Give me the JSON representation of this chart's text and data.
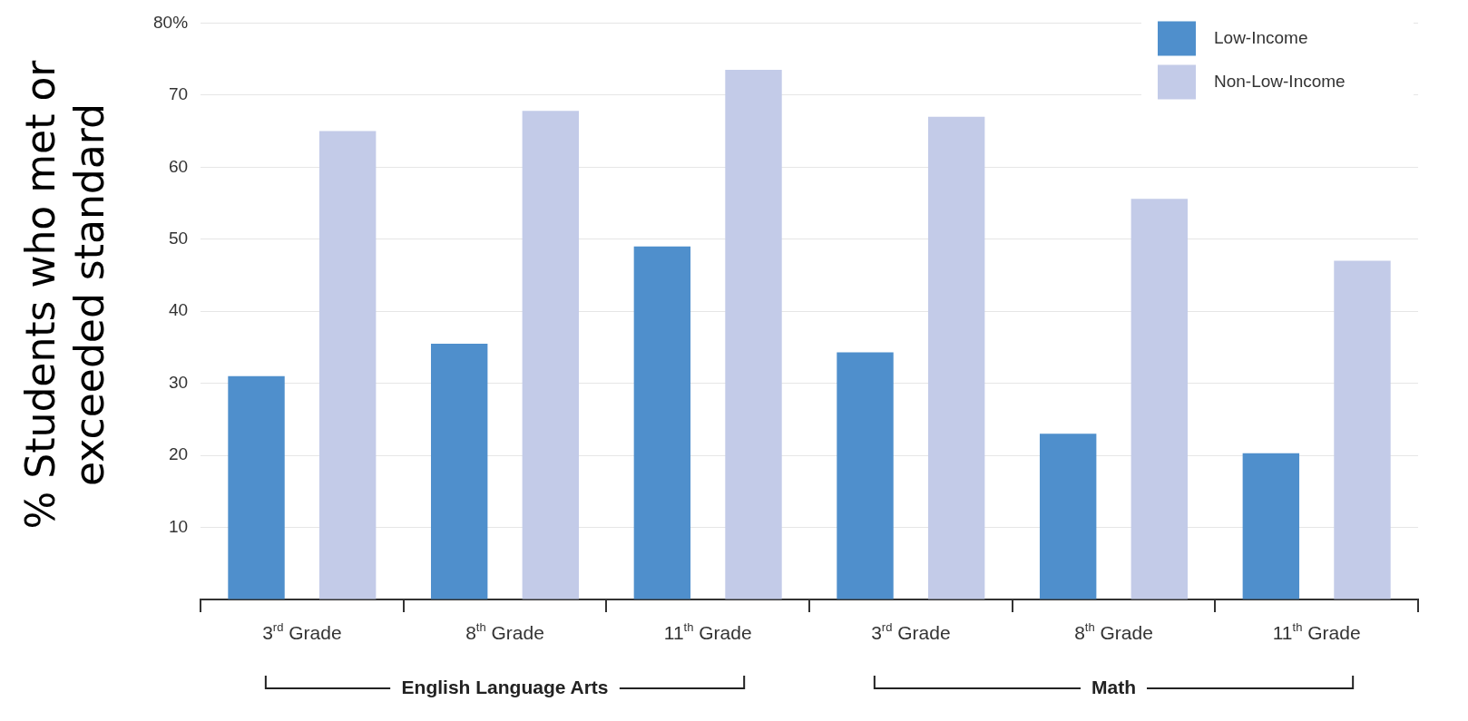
{
  "chart_data": {
    "type": "bar",
    "ylabel": "% Students who met or exceeded standard",
    "categories": [
      "3$^{rd}$ Grade",
      "8$^{th}$ Grade",
      "11$^{th}$ Grade",
      "3$^{rd}$ Grade",
      "8$^{th}$ Grade",
      "11$^{th}$ Grade"
    ],
    "series": [
      {
        "name": "Low-Income",
        "color": "#4f8fcc",
        "values": [
          31,
          35.5,
          49,
          34.3,
          23,
          20.3
        ]
      },
      {
        "name": "Non-Low-Income",
        "color": "#c3cbe8",
        "values": [
          65,
          67.8,
          73.5,
          67,
          55.6,
          47
        ]
      }
    ],
    "ylim": [
      0,
      80
    ],
    "yticks": [
      {
        "value": 0,
        "label": null
      },
      10,
      20,
      30,
      40,
      50,
      60,
      70,
      {
        "value": 80,
        "label": "80%"
      }
    ],
    "grid": "y",
    "legend": "top right",
    "annotations": [
      "English Language Arts",
      "Math"
    ]
  }
}
